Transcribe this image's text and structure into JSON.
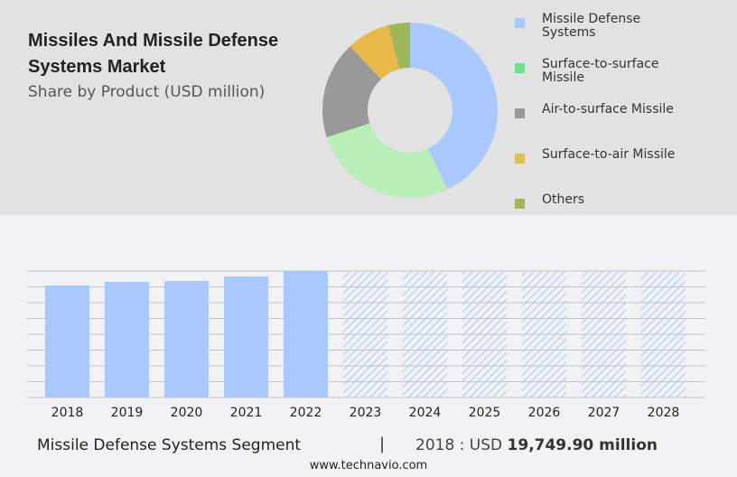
{
  "header": {
    "title": "Missiles And Missile Defense Systems Market",
    "subtitle": "Share by Product (USD million)"
  },
  "chart_data": [
    {
      "type": "pie",
      "subtype": "donut",
      "categories": [
        "Missile Defense Systems",
        "Surface-to-surface Missile",
        "Air-to-surface Missile",
        "Surface-to-air Missile",
        "Others"
      ],
      "values": [
        43,
        27,
        18,
        8,
        4
      ],
      "colors": [
        "#a8c8fe",
        "#b8eeb8",
        "#999999",
        "#e8b84a",
        "#9db85a"
      ],
      "legend_colors": [
        "#a8c8fe",
        "#6ee08e",
        "#999999",
        "#e0c050",
        "#9db85a"
      ],
      "legend": "right"
    },
    {
      "type": "bar",
      "categories": [
        "2018",
        "2019",
        "2020",
        "2021",
        "2022",
        "2023",
        "2024",
        "2025",
        "2026",
        "2027",
        "2028"
      ],
      "values": [
        19749.9,
        20387,
        20546,
        21343,
        22299,
        null,
        null,
        null,
        null,
        null,
        null
      ],
      "forecast_years": [
        "2023",
        "2024",
        "2025",
        "2026",
        "2027",
        "2028"
      ],
      "color": "#a8c8fe",
      "grid": true,
      "ylim": [
        0,
        22299
      ]
    }
  ],
  "footer": {
    "segment": "Missile Defense Systems Segment",
    "separator": "|",
    "year_label": "2018 : USD ",
    "value": "19,749.90 million",
    "url": "www.technavio.com"
  }
}
